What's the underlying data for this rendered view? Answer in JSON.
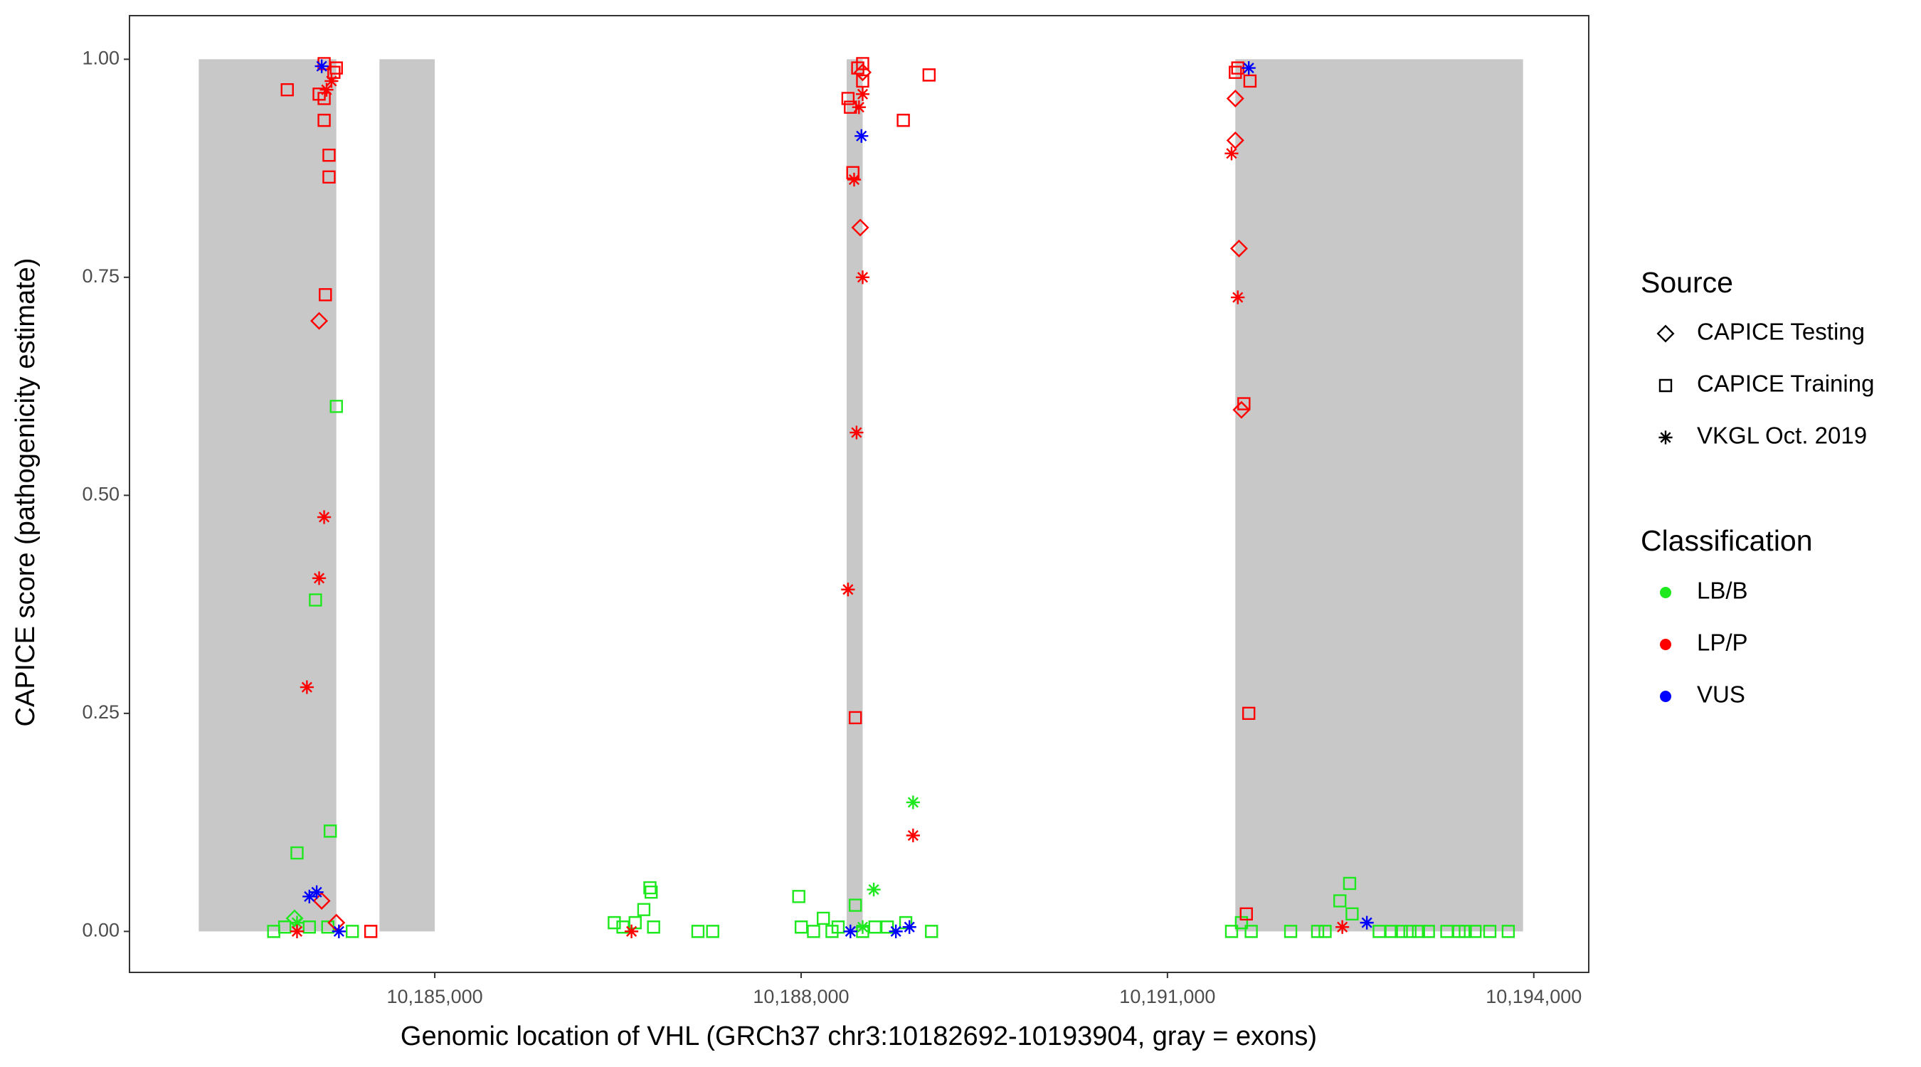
{
  "chart_data": {
    "type": "scatter",
    "x_label": "Genomic location of VHL (GRCh37 chr3:10182692-10193904, gray = exons)",
    "y_label": "CAPICE score (pathogenicity estimate)",
    "xlim": [
      10182500,
      10194450
    ],
    "ylim": [
      -0.047,
      1.05
    ],
    "xticks": [
      {
        "value": 10185000,
        "label": "10,185,000"
      },
      {
        "value": 10188000,
        "label": "10,188,000"
      },
      {
        "value": 10191000,
        "label": "10,191,000"
      },
      {
        "value": 10194000,
        "label": "10,194,000"
      }
    ],
    "yticks": [
      {
        "value": 0,
        "label": "0.00"
      },
      {
        "value": 0.25,
        "label": "0.25"
      },
      {
        "value": 0.5,
        "label": "0.50"
      },
      {
        "value": 0.75,
        "label": "0.75"
      },
      {
        "value": 1,
        "label": "1.00"
      }
    ],
    "grid": false,
    "exons": [
      {
        "start": 10183067,
        "end": 10184194
      },
      {
        "start": 10184547,
        "end": 10185000
      },
      {
        "start": 10188373,
        "end": 10188504
      },
      {
        "start": 10191556,
        "end": 10193912
      }
    ],
    "exon_color": "#c8c8c8",
    "shape_legend": {
      "title": "Source",
      "items": [
        {
          "name": "CAPICE Testing",
          "shape": "diamond"
        },
        {
          "name": "CAPICE Training",
          "shape": "square"
        },
        {
          "name": "VKGL Oct. 2019",
          "shape": "asterisk"
        }
      ]
    },
    "color_legend": {
      "title": "Classification",
      "items": [
        {
          "name": "LB/B",
          "color": "#1ee81e"
        },
        {
          "name": "LP/P",
          "color": "#ff0000"
        },
        {
          "name": "VUS",
          "color": "#0000ff"
        }
      ]
    },
    "series": [
      {
        "source": "CAPICE Training",
        "classification": "LB/B",
        "x": [
          10183681,
          10183872,
          10184023,
          10184144,
          10184194,
          10184325,
          10183771,
          10183973,
          10184124,
          10186470,
          10186541,
          10186641,
          10186712,
          10186762,
          10186772,
          10187155,
          10187276,
          10187981,
          10188102,
          10188182,
          10188303,
          10188444,
          10188605,
          10188706,
          10188857,
          10189068,
          10191525,
          10191606,
          10191686,
          10192009,
          10192230,
          10192412,
          10192492,
          10192512,
          10192734,
          10192834,
          10192986,
          10193137,
          10193288,
          10193439,
          10193640,
          10193791,
          10193519,
          10193388,
          10193056,
          10192915,
          10192291,
          10188001,
          10188253,
          10188504,
          10186792
        ],
        "values": [
          0,
          0.09,
          0.38,
          0.115,
          0.602,
          0,
          0.005,
          0.005,
          0.005,
          0.01,
          0.005,
          0.01,
          0.025,
          0.05,
          0.045,
          0,
          0,
          0.04,
          0,
          0.015,
          0.005,
          0.03,
          0.005,
          0.005,
          0.01,
          0,
          0,
          0.01,
          0,
          0,
          0,
          0.035,
          0.055,
          0.02,
          0,
          0,
          0,
          0,
          0,
          0,
          0,
          0,
          0,
          0,
          0,
          0,
          0,
          0.005,
          0,
          0,
          0.005
        ]
      },
      {
        "source": "CAPICE Testing",
        "classification": "LB/B",
        "x": [
          10183852
        ],
        "values": [
          0.015
        ]
      },
      {
        "source": "VKGL Oct. 2019",
        "classification": "LB/B",
        "x": [
          10188917,
          10188595,
          10183872,
          10188504
        ],
        "values": [
          0.148,
          0.048,
          0.01,
          0.005
        ]
      },
      {
        "source": "CAPICE Training",
        "classification": "LP/P",
        "x": [
          10183792,
          10184053,
          10184094,
          10184134,
          10184134,
          10184104,
          10184094,
          10184174,
          10184194,
          10184476,
          10188384,
          10188424,
          10188444,
          10188464,
          10188504,
          10188837,
          10189048,
          10191626,
          10191666,
          10191646,
          10191676,
          10191576,
          10188404,
          10188504,
          10184094,
          10191556
        ],
        "values": [
          0.965,
          0.96,
          0.93,
          0.89,
          0.865,
          0.73,
          0.955,
          0.985,
          0.99,
          0,
          0.955,
          0.87,
          0.245,
          0.99,
          0.975,
          0.93,
          0.982,
          0.605,
          0.25,
          0.02,
          0.975,
          0.99,
          0.945,
          0.995,
          0.995,
          0.985
        ]
      },
      {
        "source": "CAPICE Testing",
        "classification": "LP/P",
        "x": [
          10184053,
          10184194,
          10184074,
          10188484,
          10191586,
          10191556,
          10191556,
          10191606,
          10188504
        ],
        "values": [
          0.7,
          0.01,
          0.035,
          0.807,
          0.783,
          0.955,
          0.907,
          0.598,
          0.985
        ]
      },
      {
        "source": "VKGL Oct. 2019",
        "classification": "LP/P",
        "x": [
          10183953,
          10184053,
          10184094,
          10183872,
          10184154,
          10184114,
          10188434,
          10188454,
          10188384,
          10188504,
          10188474,
          10188917,
          10191576,
          10191525,
          10192432,
          10186611,
          10188504
        ],
        "values": [
          0.28,
          0.405,
          0.475,
          0,
          0.975,
          0.965,
          0.862,
          0.572,
          0.392,
          0.75,
          0.945,
          0.11,
          0.727,
          0.892,
          0.005,
          0,
          0.96
        ]
      },
      {
        "source": "VKGL Oct. 2019",
        "classification": "VUS",
        "x": [
          10184074,
          10183973,
          10184033,
          10184215,
          10188494,
          10188404,
          10188776,
          10188887,
          10191666,
          10192633
        ],
        "values": [
          0.992,
          0.04,
          0.045,
          0,
          0.912,
          0,
          0,
          0.005,
          0.99,
          0.01
        ]
      }
    ]
  }
}
